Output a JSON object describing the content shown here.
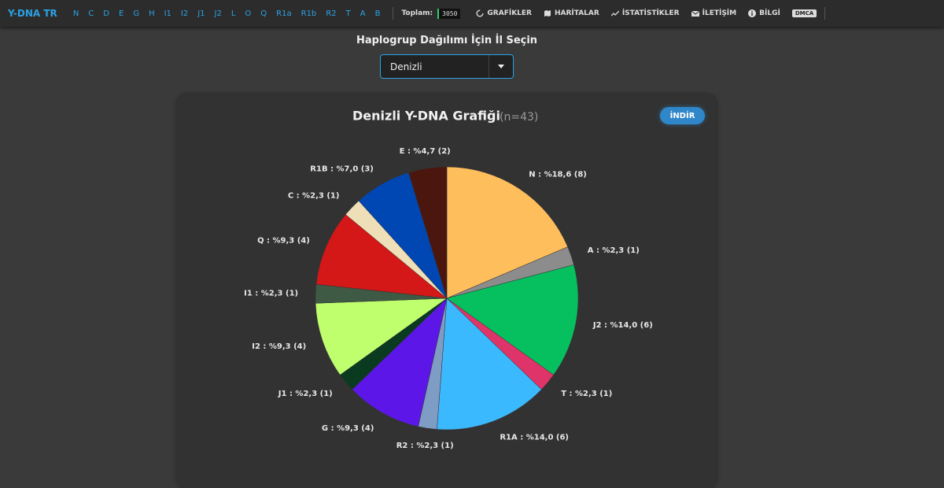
{
  "nav": {
    "brand": "Y-DNA TR",
    "haplogroups": [
      "N",
      "C",
      "D",
      "E",
      "G",
      "H",
      "I1",
      "I2",
      "J1",
      "J2",
      "L",
      "O",
      "Q",
      "R1a",
      "R1b",
      "R2",
      "T",
      "A",
      "B"
    ],
    "total_label": "Toplam:",
    "total": "3050",
    "links": [
      "GRAFİKLER",
      "HARİTALAR",
      "İSTATİSTİKLER",
      "İLETİŞİM",
      "BİLGİ"
    ],
    "badge": "DMCA"
  },
  "selector": {
    "label": "Haplogrup Dağılımı İçin İl Seçin",
    "selected": "Denizli"
  },
  "card": {
    "download": "İNDİR"
  },
  "chart_data": {
    "type": "pie",
    "title": "Denizli Y-DNA Grafiği",
    "subtitle": "(n=43)",
    "categories": [
      "N",
      "A",
      "J2",
      "T",
      "R1A",
      "R2",
      "G",
      "J1",
      "I2",
      "I1",
      "Q",
      "C",
      "R1B",
      "E"
    ],
    "values": [
      18.6,
      2.3,
      14.0,
      2.3,
      14.0,
      2.3,
      9.3,
      2.3,
      9.3,
      2.3,
      9.3,
      2.3,
      7.0,
      4.7
    ],
    "value_labels": [
      "N : %18,6 (8)",
      "A : %2,3 (1)",
      "J2 : %14,0 (6)",
      "T : %2,3 (1)",
      "R1A : %14,0 (6)",
      "R2 : %2,3 (1)",
      "G : %9,3 (4)",
      "J1 : %2,3 (1)",
      "I2 : %9,3 (4)",
      "I1 : %2,3 (1)",
      "Q : %9,3 (4)",
      "C : %2,3 (1)",
      "R1B : %7,0 (3)",
      "E : %4,7 (2)"
    ],
    "colors": [
      "#ffbe5c",
      "#8c8c8c",
      "#06c05f",
      "#df346a",
      "#3bb9ff",
      "#7f9cc4",
      "#5c17e8",
      "#0a3a1f",
      "#bfff6e",
      "#3e5a45",
      "#d41717",
      "#efdfb8",
      "#0047b3",
      "#4a160e"
    ]
  }
}
